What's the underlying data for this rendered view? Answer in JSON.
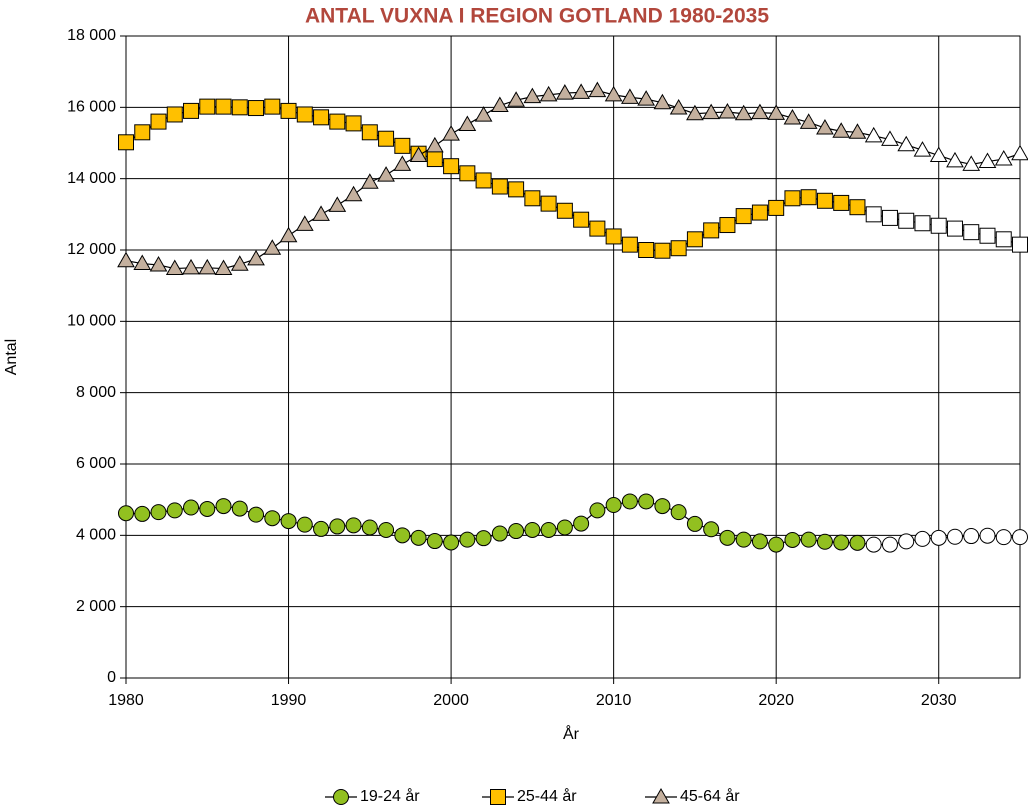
{
  "chart_data": {
    "type": "line",
    "title": "ANTAL VUXNA I REGION GOTLAND 1980-2035",
    "xlabel": "År",
    "ylabel": "Antal",
    "x": [
      1980,
      1981,
      1982,
      1983,
      1984,
      1985,
      1986,
      1987,
      1988,
      1989,
      1990,
      1991,
      1992,
      1993,
      1994,
      1995,
      1996,
      1997,
      1998,
      1999,
      2000,
      2001,
      2002,
      2003,
      2004,
      2005,
      2006,
      2007,
      2008,
      2009,
      2010,
      2011,
      2012,
      2013,
      2014,
      2015,
      2016,
      2017,
      2018,
      2019,
      2020,
      2021,
      2022,
      2023,
      2024,
      2025,
      2026,
      2027,
      2028,
      2029,
      2030,
      2031,
      2032,
      2033,
      2034,
      2035
    ],
    "series": [
      {
        "name": "19-24 år",
        "color": "#92c020",
        "marker": "circle",
        "values": [
          4620,
          4600,
          4650,
          4700,
          4780,
          4740,
          4820,
          4750,
          4580,
          4480,
          4400,
          4300,
          4180,
          4250,
          4280,
          4220,
          4150,
          4000,
          3930,
          3840,
          3800,
          3880,
          3920,
          4050,
          4120,
          4150,
          4150,
          4220,
          4330,
          4700,
          4850,
          4950,
          4950,
          4820,
          4650,
          4320,
          4170,
          3930,
          3880,
          3830,
          3740,
          3870,
          3880,
          3820,
          3800,
          3790,
          3740,
          3740,
          3830,
          3900,
          3930,
          3960,
          3980,
          3990,
          3950,
          3950
        ]
      },
      {
        "name": "25-44 år",
        "color": "#ffc000",
        "marker": "square",
        "values": [
          15020,
          15300,
          15600,
          15800,
          15900,
          16020,
          16020,
          16000,
          15980,
          16020,
          15900,
          15800,
          15720,
          15600,
          15550,
          15300,
          15120,
          14920,
          14700,
          14550,
          14350,
          14150,
          13950,
          13780,
          13700,
          13450,
          13300,
          13100,
          12850,
          12600,
          12380,
          12150,
          12000,
          11980,
          12050,
          12300,
          12550,
          12700,
          12950,
          13050,
          13180,
          13450,
          13480,
          13380,
          13320,
          13200,
          13000,
          12900,
          12820,
          12750,
          12680,
          12600,
          12500,
          12400,
          12300,
          12150
        ]
      },
      {
        "name": "45-64 år",
        "color": "#c4b09e",
        "marker": "triangle",
        "values": [
          11700,
          11620,
          11580,
          11480,
          11500,
          11500,
          11480,
          11600,
          11750,
          12050,
          12400,
          12720,
          13000,
          13250,
          13550,
          13900,
          14100,
          14400,
          14650,
          14920,
          15250,
          15520,
          15780,
          16050,
          16200,
          16300,
          16350,
          16400,
          16420,
          16470,
          16350,
          16280,
          16230,
          16130,
          15980,
          15820,
          15850,
          15870,
          15820,
          15850,
          15830,
          15700,
          15580,
          15420,
          15330,
          15300,
          15200,
          15100,
          14950,
          14800,
          14650,
          14500,
          14400,
          14480,
          14550,
          14700
        ]
      }
    ],
    "projection_start": 2026,
    "projection_fill": "#ffffff",
    "xlim": [
      1980,
      2035
    ],
    "xticks": [
      1980,
      1990,
      2000,
      2010,
      2020,
      2030
    ],
    "ylim": [
      0,
      18000
    ],
    "yticks": [
      0,
      {
        "value": 2000,
        "label": "2 000"
      },
      {
        "value": 4000,
        "label": "4 000"
      },
      {
        "value": 6000,
        "label": "6 000"
      },
      {
        "value": 8000,
        "label": "8 000"
      },
      {
        "value": 10000,
        "label": "10 000"
      },
      {
        "value": 12000,
        "label": "12 000"
      },
      {
        "value": 14000,
        "label": "14 000"
      },
      {
        "value": 16000,
        "label": "16 000"
      },
      {
        "value": 18000,
        "label": "18 000"
      }
    ],
    "grid": true,
    "legend": "bottom"
  }
}
